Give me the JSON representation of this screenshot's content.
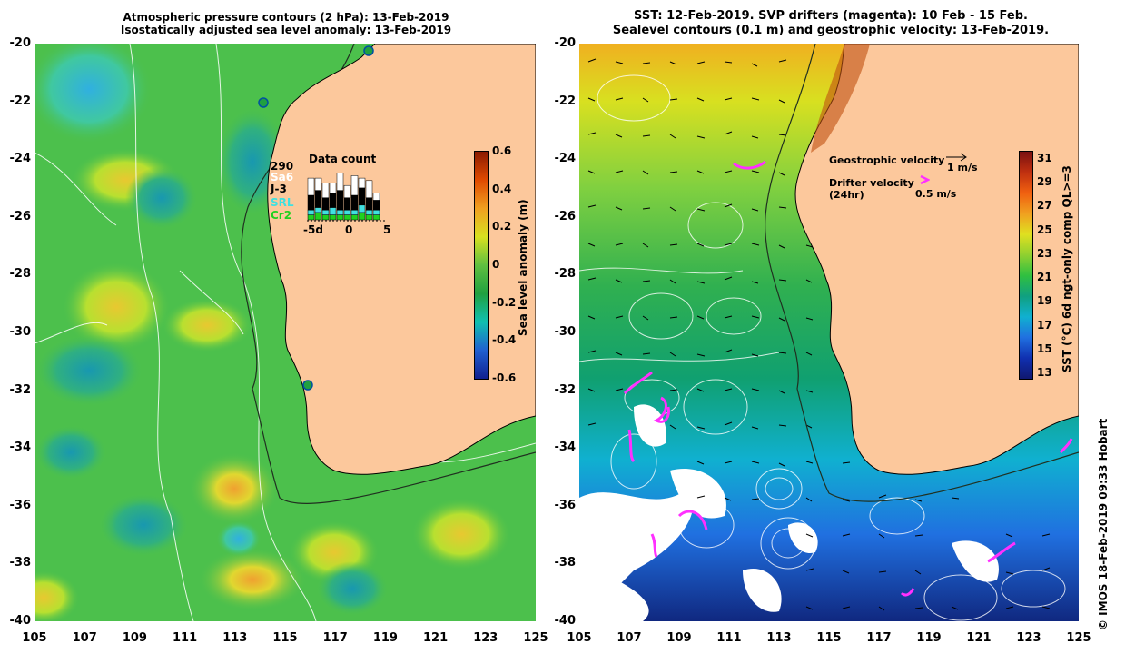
{
  "left_panel": {
    "title_line1": "Atmospheric pressure contours (2 hPa): 13-Feb-2019",
    "title_line2": "Isostatically adjusted sea level anomaly: 13-Feb-2019",
    "colorbar": {
      "title": "Sea level anomaly (m)",
      "ticks": [
        "0.6",
        "0.4",
        "0.2",
        "0",
        "-0.2",
        "-0.4",
        "-0.6"
      ],
      "colors": [
        "#8b1a00",
        "#e04a00",
        "#f0a020",
        "#d8e020",
        "#60c040",
        "#20a040",
        "#10c0b0",
        "#2060d0",
        "#102090"
      ]
    },
    "data_count": {
      "title": "Data count",
      "count": "290",
      "sat_labels": [
        "Sa6",
        "J-3",
        "SRL",
        "Cr2"
      ],
      "sat_colors": [
        "#ffffff",
        "#000000",
        "#40e0e0",
        "#20d020"
      ],
      "axis_ticks": [
        "-5d",
        "0",
        "5"
      ],
      "bars": [
        {
          "day": -5,
          "sa6": 0.35,
          "j3": 0.3,
          "srl": 0.1,
          "cr2": 0.1
        },
        {
          "day": -4,
          "sa6": 0.25,
          "j3": 0.35,
          "srl": 0.1,
          "cr2": 0.15
        },
        {
          "day": -3,
          "sa6": 0.3,
          "j3": 0.25,
          "srl": 0.1,
          "cr2": 0.1
        },
        {
          "day": -2,
          "sa6": 0.2,
          "j3": 0.3,
          "srl": 0.15,
          "cr2": 0.1
        },
        {
          "day": -1,
          "sa6": 0.35,
          "j3": 0.4,
          "srl": 0.1,
          "cr2": 0.1
        },
        {
          "day": 0,
          "sa6": 0.25,
          "j3": 0.25,
          "srl": 0.1,
          "cr2": 0.1
        },
        {
          "day": 1,
          "sa6": 0.4,
          "j3": 0.3,
          "srl": 0.1,
          "cr2": 0.1
        },
        {
          "day": 2,
          "sa6": 0.2,
          "j3": 0.35,
          "srl": 0.15,
          "cr2": 0.15
        },
        {
          "day": 3,
          "sa6": 0.35,
          "j3": 0.25,
          "srl": 0.1,
          "cr2": 0.1
        },
        {
          "day": 4,
          "sa6": 0.15,
          "j3": 0.2,
          "srl": 0.1,
          "cr2": 0.1
        }
      ]
    }
  },
  "right_panel": {
    "title_line1": "SST: 12-Feb-2019. SVP drifters (magenta): 10 Feb - 15 Feb.",
    "title_line2": "Sealevel contours (0.1 m) and geostrophic velocity: 13-Feb-2019.",
    "legend": {
      "geostrophic": "Geostrophic velocity",
      "geostrophic_scale": "1 m/s",
      "drifter": "Drifter velocity",
      "drifter_sub": "(24hr)",
      "drifter_scale": "0.5 m/s"
    },
    "colorbar": {
      "title": "SST (°C) 6d ngt-only comp QL>=3",
      "ticks": [
        "31",
        "29",
        "27",
        "25",
        "23",
        "21",
        "19",
        "17",
        "15",
        "13"
      ],
      "colors": [
        "#7a1010",
        "#c03010",
        "#f06010",
        "#f0a020",
        "#e0e020",
        "#90d030",
        "#30c040",
        "#10a080",
        "#10b0d0",
        "#2070e0",
        "#1030b0",
        "#101870"
      ]
    }
  },
  "axes": {
    "lat_labels": [
      "-20",
      "-22",
      "-24",
      "-26",
      "-28",
      "-30",
      "-32",
      "-34",
      "-36",
      "-38",
      "-40"
    ],
    "lon_labels": [
      "105",
      "107",
      "109",
      "111",
      "113",
      "115",
      "117",
      "119",
      "121",
      "123",
      "125"
    ]
  },
  "credit": "© IMOS 18-Feb-2019 09:33 Hobart",
  "colors": {
    "land": "#fcc89c",
    "ocean_left": "#4cc04c",
    "coast_line": "#000000",
    "contour": "#ffffff",
    "drifter": "#ff30ff"
  }
}
